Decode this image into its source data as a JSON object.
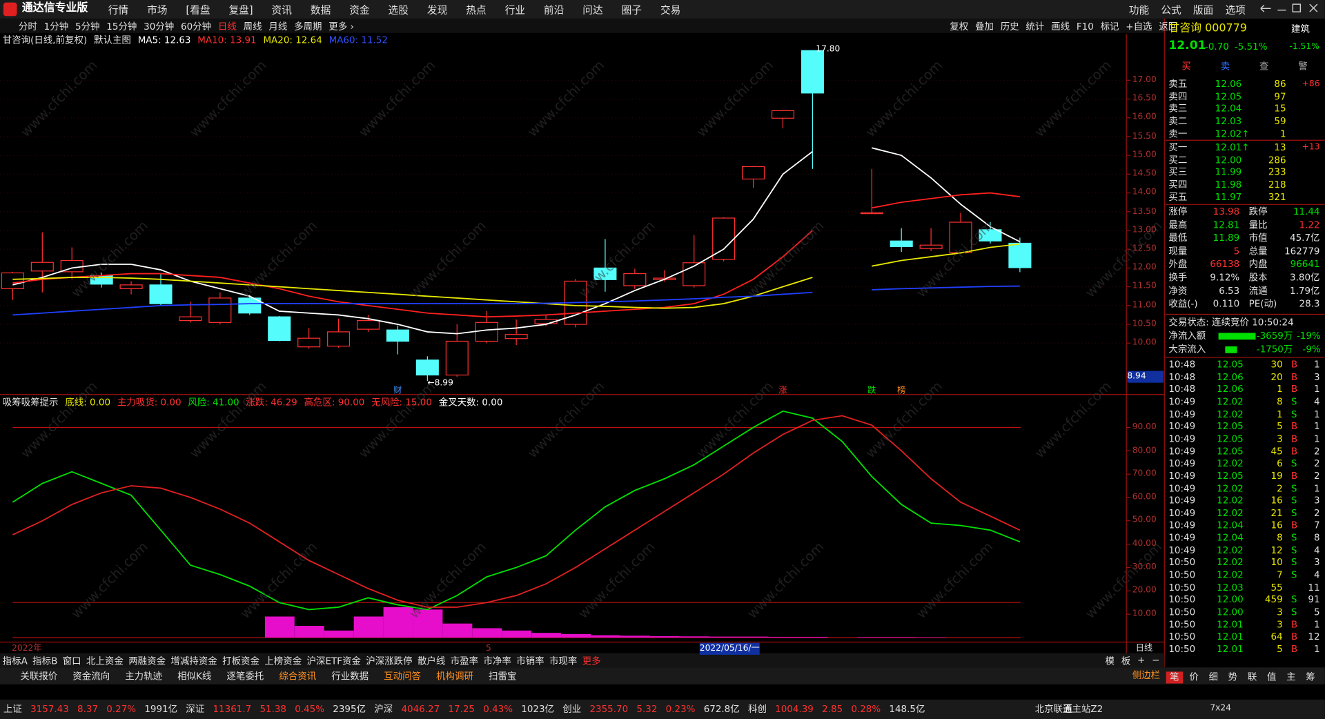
{
  "app": {
    "title": "通达信专业版",
    "menu": [
      "行情",
      "市场",
      "[看盘",
      "复盘]",
      "资讯",
      "数据",
      "资金",
      "选股",
      "发现",
      "热点",
      "行业",
      "前沿",
      "问达",
      "圈子",
      "交易"
    ],
    "right_menu": [
      "功能",
      "公式",
      "版面",
      "选项"
    ]
  },
  "toolbar": {
    "periods": [
      "分时",
      "1分钟",
      "5分钟",
      "15分钟",
      "30分钟",
      "60分钟",
      "日线",
      "周线",
      "月线",
      "多周期",
      "更多 ›"
    ],
    "tools": [
      "复权",
      "叠加",
      "历史",
      "统计",
      "画线",
      "F10",
      "标记",
      "+自选",
      "返回"
    ]
  },
  "chart_header": {
    "name": "甘咨询(日线,前复权)",
    "template": "默认主图",
    "ma": [
      {
        "label": "MA5: 12.63",
        "color": "#ffffff"
      },
      {
        "label": "MA10: 13.91",
        "color": "#ff3030"
      },
      {
        "label": "MA20: 12.64",
        "color": "#e8e800"
      },
      {
        "label": "MA60: 11.52",
        "color": "#3050ff"
      }
    ]
  },
  "main_chart": {
    "type": "candlestick",
    "up_color": "#ff3030",
    "down_color": "#54fcfc",
    "candles": [
      {
        "open": 11.45,
        "high": 11.9,
        "low": 11.15,
        "close": 11.87
      },
      {
        "open": 11.92,
        "high": 12.95,
        "low": 11.35,
        "close": 12.15
      },
      {
        "open": 11.9,
        "high": 12.55,
        "low": 11.7,
        "close": 12.2
      },
      {
        "open": 11.8,
        "high": 11.88,
        "low": 11.48,
        "close": 11.57
      },
      {
        "open": 11.45,
        "high": 11.65,
        "low": 11.3,
        "close": 11.55
      },
      {
        "open": 11.55,
        "high": 11.87,
        "low": 11.0,
        "close": 11.05
      },
      {
        "open": 10.6,
        "high": 11.1,
        "low": 10.55,
        "close": 10.7
      },
      {
        "open": 10.55,
        "high": 11.35,
        "low": 10.5,
        "close": 11.2
      },
      {
        "open": 11.2,
        "high": 11.28,
        "low": 10.75,
        "close": 10.8
      },
      {
        "open": 10.7,
        "high": 10.72,
        "low": 10.05,
        "close": 10.07
      },
      {
        "open": 9.9,
        "high": 10.4,
        "low": 9.85,
        "close": 10.13
      },
      {
        "open": 9.92,
        "high": 10.65,
        "low": 9.88,
        "close": 10.3
      },
      {
        "open": 10.37,
        "high": 10.75,
        "low": 10.3,
        "close": 10.6
      },
      {
        "open": 10.35,
        "high": 10.47,
        "low": 9.7,
        "close": 10.05
      },
      {
        "open": 9.55,
        "high": 9.65,
        "low": 8.99,
        "close": 9.15
      },
      {
        "open": 9.15,
        "high": 10.5,
        "low": 9.1,
        "close": 10.05
      },
      {
        "open": 10.05,
        "high": 10.85,
        "low": 10.0,
        "close": 10.55
      },
      {
        "open": 10.12,
        "high": 10.63,
        "low": 9.95,
        "close": 10.23
      },
      {
        "open": 10.52,
        "high": 10.75,
        "low": 10.45,
        "close": 10.63
      },
      {
        "open": 10.5,
        "high": 11.71,
        "low": 10.42,
        "close": 11.65
      },
      {
        "open": 12.0,
        "high": 12.77,
        "low": 11.37,
        "close": 11.69
      },
      {
        "open": 11.53,
        "high": 11.98,
        "low": 11.44,
        "close": 11.85
      },
      {
        "open": 11.69,
        "high": 11.94,
        "low": 11.64,
        "close": 11.73
      },
      {
        "open": 11.53,
        "high": 12.88,
        "low": 11.48,
        "close": 12.14
      },
      {
        "open": 12.23,
        "high": 13.35,
        "low": 12.18,
        "close": 13.33
      },
      {
        "open": 14.37,
        "high": 14.72,
        "low": 14.14,
        "close": 14.7
      },
      {
        "open": 15.99,
        "high": 16.21,
        "low": 15.72,
        "close": 16.19
      },
      {
        "open": 17.79,
        "high": 17.8,
        "low": 14.64,
        "close": 16.66
      },
      null,
      {
        "open": 13.47,
        "high": 14.64,
        "low": 13.44,
        "close": 13.47
      },
      {
        "open": 12.72,
        "high": 13.06,
        "low": 12.43,
        "close": 12.57
      },
      {
        "open": 12.52,
        "high": 13.06,
        "low": 12.45,
        "close": 12.61
      },
      {
        "open": 12.41,
        "high": 13.47,
        "low": 12.39,
        "close": 13.22
      },
      {
        "open": 13.02,
        "high": 13.22,
        "low": 12.65,
        "close": 12.72
      },
      {
        "open": 12.66,
        "high": 12.81,
        "low": 11.89,
        "close": 12.01
      }
    ],
    "series": [
      {
        "name": "MA5",
        "color": "#ffffff",
        "values": [
          11.55,
          11.75,
          12.0,
          12.1,
          12.1,
          11.95,
          11.65,
          11.45,
          11.25,
          10.85,
          10.8,
          10.75,
          10.65,
          10.5,
          10.3,
          10.25,
          10.35,
          10.4,
          10.5,
          10.75,
          11.05,
          11.4,
          11.7,
          12.05,
          12.5,
          13.3,
          14.5,
          15.1,
          null,
          15.2,
          15.0,
          14.4,
          13.7,
          13.1,
          12.7
        ]
      },
      {
        "name": "MA10",
        "color": "#ff2020",
        "values": [
          11.6,
          11.7,
          11.75,
          11.8,
          11.85,
          11.85,
          11.8,
          11.75,
          11.6,
          11.45,
          11.25,
          11.1,
          11.0,
          10.9,
          10.8,
          10.75,
          10.7,
          10.72,
          10.75,
          10.8,
          10.85,
          10.9,
          10.95,
          11.05,
          11.3,
          11.7,
          12.3,
          13.0,
          null,
          13.6,
          13.75,
          13.85,
          13.95,
          14.0,
          13.9
        ]
      },
      {
        "name": "MA20",
        "color": "#e8e800",
        "values": [
          11.7,
          11.72,
          11.75,
          11.75,
          11.73,
          11.7,
          11.65,
          11.6,
          11.55,
          11.5,
          11.45,
          11.4,
          11.35,
          11.3,
          11.25,
          11.2,
          11.15,
          11.1,
          11.05,
          11.0,
          10.98,
          10.95,
          10.93,
          10.95,
          11.05,
          11.25,
          11.5,
          11.75,
          null,
          12.05,
          12.2,
          12.3,
          12.4,
          12.55,
          12.64
        ]
      },
      {
        "name": "MA60",
        "color": "#2040ff",
        "values": [
          10.75,
          10.8,
          10.85,
          10.9,
          10.95,
          11.0,
          11.02,
          11.03,
          11.05,
          11.05,
          11.05,
          11.05,
          11.05,
          11.05,
          11.05,
          11.05,
          11.05,
          11.05,
          11.06,
          11.08,
          11.1,
          11.12,
          11.15,
          11.18,
          11.22,
          11.25,
          11.3,
          11.35,
          null,
          11.42,
          11.45,
          11.47,
          11.49,
          11.51,
          11.52
        ]
      }
    ],
    "ylim": [
      8.63,
      17.9
    ],
    "yticks": [
      {
        "value": 10,
        "label": "10.00"
      },
      {
        "value": 10.5,
        "label": "10.50"
      },
      {
        "value": 11,
        "label": "11.00"
      },
      {
        "value": 11.5,
        "label": "11.50"
      },
      {
        "value": 12,
        "label": "12.00"
      },
      {
        "value": 12.5,
        "label": "12.50"
      },
      {
        "value": 13,
        "label": "13.00"
      },
      {
        "value": 13.5,
        "label": "13.50"
      },
      {
        "value": 14,
        "label": "14.00"
      },
      {
        "value": 14.5,
        "label": "14.50"
      },
      {
        "value": 15,
        "label": "15.00"
      },
      {
        "value": 15.5,
        "label": "15.50"
      },
      {
        "value": 16,
        "label": "16.00"
      },
      {
        "value": 16.5,
        "label": "16.50"
      },
      {
        "value": 17,
        "label": "17.00"
      }
    ],
    "high_label": "17.80",
    "low_label": "←8.99",
    "cursor_price": "8.94",
    "event_markers": [
      {
        "label": "财",
        "index": 13,
        "color": "#4090ff"
      },
      {
        "label": "涨",
        "index": 26,
        "color": "#ff3030"
      },
      {
        "label": "跌",
        "index": 29,
        "color": "#00e000"
      },
      {
        "label": "榜",
        "index": 30,
        "color": "#ff9020"
      }
    ]
  },
  "indicator": {
    "type": "line",
    "name": "吸筹吸筹提示",
    "params": [
      {
        "label": "底线: 0.00",
        "color": "#e8e800"
      },
      {
        "label": "主力吸货: 0.00",
        "color": "#ff3030"
      },
      {
        "label": "风险: 41.00",
        "color": "#00e000"
      },
      {
        "label": "涨跌: 46.29",
        "color": "#ff3030"
      },
      {
        "label": "高危区: 90.00",
        "color": "#ff3030"
      },
      {
        "label": "无风险: 15.00",
        "color": "#ff3030"
      },
      {
        "label": "金叉天数: 0.00",
        "color": "#ffffff"
      }
    ],
    "series": [
      {
        "name": "风险",
        "color": "#00e000",
        "values": [
          58,
          66,
          71,
          66,
          61,
          46,
          31,
          27,
          22,
          15,
          12,
          13,
          17,
          14,
          12,
          18,
          26,
          30,
          35,
          46,
          56,
          63,
          68,
          74,
          82,
          90,
          97,
          94,
          84,
          69,
          57,
          49,
          48,
          46,
          41
        ]
      },
      {
        "name": "涨跌",
        "color": "#e02020",
        "values": [
          44,
          50,
          57,
          62,
          65,
          64,
          60,
          55,
          49,
          41,
          33,
          27,
          21,
          16,
          13,
          13,
          15,
          18,
          23,
          30,
          38,
          46,
          54,
          62,
          70,
          79,
          87,
          93,
          95,
          91,
          80,
          68,
          58,
          52,
          46
        ]
      }
    ],
    "bars": {
      "color": "#ff10e0",
      "values": [
        null,
        null,
        null,
        null,
        null,
        null,
        null,
        null,
        null,
        9,
        5,
        3,
        9,
        13,
        12,
        6,
        4,
        3,
        2,
        1.5,
        1,
        0.8,
        0.6,
        0.5,
        0.4,
        0.4,
        0.3,
        0.3,
        null,
        0.2,
        0.2,
        0.1,
        null,
        null,
        null
      ]
    },
    "reference_lines": [
      90,
      15,
      0
    ],
    "ylim": [
      -1.95,
      98.3
    ],
    "yticks": [
      {
        "value": 10,
        "label": "10.00"
      },
      {
        "value": 20,
        "label": "20.00"
      },
      {
        "value": 30,
        "label": "30.00"
      },
      {
        "value": 40,
        "label": "40.00"
      },
      {
        "value": 50,
        "label": "50.00"
      },
      {
        "value": 60,
        "label": "60.00"
      },
      {
        "value": 70,
        "label": "70.00"
      },
      {
        "value": 80,
        "label": "80.00"
      },
      {
        "value": 90,
        "label": "90.00"
      }
    ]
  },
  "date_bar": {
    "year": "2022年",
    "month": "5",
    "cursor": "2022/05/16/一",
    "period": "日线"
  },
  "tabs1": [
    "指标A",
    "指标B",
    "窗口",
    "北上资金",
    "两融资金",
    "增减持资金",
    "打板资金",
    "上榜资金",
    "沪深ETF资金",
    "沪深涨跌停",
    "散户线",
    "市盈率",
    "市净率",
    "市销率",
    "市现率",
    "更多"
  ],
  "tabs1_right": [
    "模",
    "板",
    "+",
    "−"
  ],
  "tabs2": [
    "关联报价",
    "资金流向",
    "主力轨迹",
    "相似K线",
    "逐笔委托",
    "综合资讯",
    "行业数据",
    "互动问答",
    "机构调研",
    "扫雷宝"
  ],
  "tabs2_right": "侧边栏",
  "watermark": "www.cfchi.com",
  "status": {
    "indices": [
      {
        "name": "上证",
        "value": "3157.43",
        "change": "8.37",
        "pct": "0.27%",
        "amount": "1991亿"
      },
      {
        "name": "深证",
        "value": "11361.7",
        "change": "51.38",
        "pct": "0.45%",
        "amount": "2395亿"
      },
      {
        "name": "沪深",
        "value": "4046.27",
        "change": "17.25",
        "pct": "0.43%",
        "amount": "1023亿"
      },
      {
        "name": "创业",
        "value": "2355.70",
        "change": "5.32",
        "pct": "0.23%",
        "amount": "672.8亿"
      },
      {
        "name": "科创",
        "value": "1004.39",
        "change": "2.85",
        "pct": "0.28%",
        "amount": "148.5亿"
      }
    ],
    "server": "北京联通主站Z2",
    "ime": "五",
    "clock": "7x24"
  },
  "quote": {
    "name": "甘咨询 000779",
    "sector": "建筑",
    "price": "12.01",
    "change": "-0.70",
    "pct": "-5.51%",
    "sector_pct": "-1.51%",
    "buttons": [
      "买",
      "卖",
      "查",
      "警"
    ],
    "asks": [
      {
        "label": "卖五",
        "price": "12.06",
        "vol": "86",
        "delta": "+86"
      },
      {
        "label": "卖四",
        "price": "12.05",
        "vol": "97"
      },
      {
        "label": "卖三",
        "price": "12.04",
        "vol": "15"
      },
      {
        "label": "卖二",
        "price": "12.03",
        "vol": "59"
      },
      {
        "label": "卖一",
        "price": "12.02↑",
        "vol": "1"
      }
    ],
    "bids": [
      {
        "label": "买一",
        "price": "12.01↑",
        "vol": "13",
        "delta": "+13"
      },
      {
        "label": "买二",
        "price": "12.00",
        "vol": "286"
      },
      {
        "label": "买三",
        "price": "11.99",
        "vol": "233"
      },
      {
        "label": "买四",
        "price": "11.98",
        "vol": "218"
      },
      {
        "label": "买五",
        "price": "11.97",
        "vol": "321"
      }
    ],
    "stats": [
      [
        {
          "label": "涨停",
          "value": "13.98",
          "color": "#ff3030"
        },
        {
          "label": "跌停",
          "value": "11.44",
          "color": "#00e000"
        }
      ],
      [
        {
          "label": "最高",
          "value": "12.81",
          "color": "#00e000"
        },
        {
          "label": "量比",
          "value": "1.22",
          "color": "#ff3030"
        }
      ],
      [
        {
          "label": "最低",
          "value": "11.89",
          "color": "#00e000"
        },
        {
          "label": "市值",
          "value": "45.7亿",
          "color": "#e0e0e0"
        }
      ],
      [
        {
          "label": "现量",
          "value": "5",
          "color": "#ff3030"
        },
        {
          "label": "总量",
          "value": "162779",
          "color": "#e0e0e0"
        }
      ],
      [
        {
          "label": "外盘",
          "value": "66138",
          "color": "#ff3030"
        },
        {
          "label": "内盘",
          "value": "96641",
          "color": "#00e000"
        }
      ],
      [
        {
          "label": "换手",
          "value": "9.12%",
          "color": "#e0e0e0"
        },
        {
          "label": "股本",
          "value": "3.80亿",
          "color": "#e0e0e0"
        }
      ],
      [
        {
          "label": "净资",
          "value": "6.53",
          "color": "#e0e0e0"
        },
        {
          "label": "流通",
          "value": "1.79亿",
          "color": "#e0e0e0"
        }
      ],
      [
        {
          "label": "收益(-)",
          "value": "0.110",
          "color": "#e0e0e0"
        },
        {
          "label": "PE(动)",
          "value": "28.3",
          "color": "#e0e0e0"
        }
      ]
    ],
    "trade_status": "交易状态: 连续竞价 10:50:24",
    "flows": [
      {
        "label": "净流入额",
        "value": "-3659万",
        "pct": "-19%"
      },
      {
        "label": "大宗流入",
        "value": "-1750万",
        "pct": "-9%"
      }
    ],
    "trades": [
      [
        "10:48",
        "12.05",
        "30",
        "B",
        "1"
      ],
      [
        "10:48",
        "12.06",
        "20",
        "B",
        "3"
      ],
      [
        "10:48",
        "12.06",
        "1",
        "B",
        "1"
      ],
      [
        "10:49",
        "12.02",
        "8",
        "S",
        "4"
      ],
      [
        "10:49",
        "12.02",
        "1",
        "S",
        "1"
      ],
      [
        "10:49",
        "12.05",
        "5",
        "B",
        "1"
      ],
      [
        "10:49",
        "12.05",
        "3",
        "B",
        "1"
      ],
      [
        "10:49",
        "12.05",
        "45",
        "B",
        "2"
      ],
      [
        "10:49",
        "12.02",
        "6",
        "S",
        "2"
      ],
      [
        "10:49",
        "12.05",
        "19",
        "B",
        "2"
      ],
      [
        "10:49",
        "12.02",
        "2",
        "S",
        "1"
      ],
      [
        "10:49",
        "12.02",
        "16",
        "S",
        "3"
      ],
      [
        "10:49",
        "12.02",
        "21",
        "S",
        "2"
      ],
      [
        "10:49",
        "12.04",
        "16",
        "B",
        "7"
      ],
      [
        "10:49",
        "12.04",
        "8",
        "S",
        "8"
      ],
      [
        "10:49",
        "12.02",
        "12",
        "S",
        "4"
      ],
      [
        "10:50",
        "12.02",
        "10",
        "S",
        "3"
      ],
      [
        "10:50",
        "12.02",
        "7",
        "S",
        "4"
      ],
      [
        "10:50",
        "12.03",
        "55",
        null,
        "11"
      ],
      [
        "10:50",
        "12.00",
        "459",
        "S",
        "91"
      ],
      [
        "10:50",
        "12.00",
        "3",
        "S",
        "5"
      ],
      [
        "10:50",
        "12.01",
        "3",
        "B",
        "1"
      ],
      [
        "10:50",
        "12.01",
        "64",
        "B",
        "12"
      ],
      [
        "10:50",
        "12.01",
        "5",
        "B",
        "1"
      ]
    ],
    "side_tabs": [
      "笔",
      "价",
      "细",
      "势",
      "联",
      "值",
      "主",
      "筹"
    ]
  }
}
